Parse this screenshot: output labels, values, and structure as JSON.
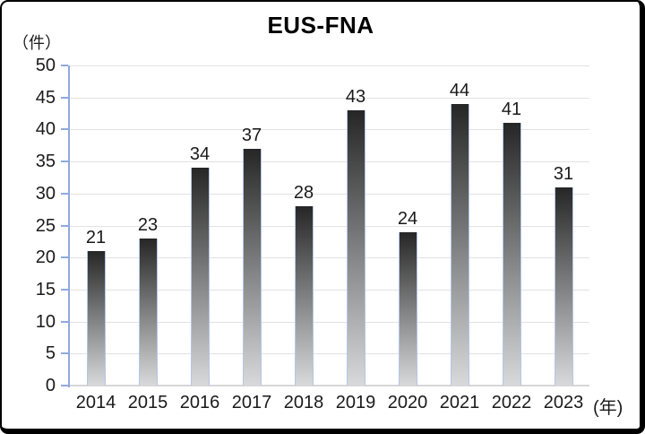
{
  "chart_data": {
    "type": "bar",
    "title": "EUS-FNA",
    "y_axis_unit": "（件）",
    "x_axis_unit": "(年)",
    "categories": [
      "2014",
      "2015",
      "2016",
      "2017",
      "2018",
      "2019",
      "2020",
      "2021",
      "2022",
      "2023"
    ],
    "values": [
      21,
      23,
      34,
      37,
      28,
      43,
      24,
      44,
      41,
      31
    ],
    "ylim": [
      0,
      50
    ],
    "y_ticks": [
      0,
      5,
      10,
      15,
      20,
      25,
      30,
      35,
      40,
      45,
      50
    ],
    "grid": true,
    "legend": "none",
    "colors": {
      "bar_gradient_top": "#262626",
      "bar_gradient_bottom": "#d7d9db",
      "bar_side_border": "#b4c6e7",
      "value_axis": "#8faadc",
      "gridline": "#e2e2e2",
      "baseline": "#d6d6d6",
      "text": "#1a1a1a",
      "title_text": "#000000",
      "frame": "#000000",
      "background": "#ffffff"
    }
  }
}
